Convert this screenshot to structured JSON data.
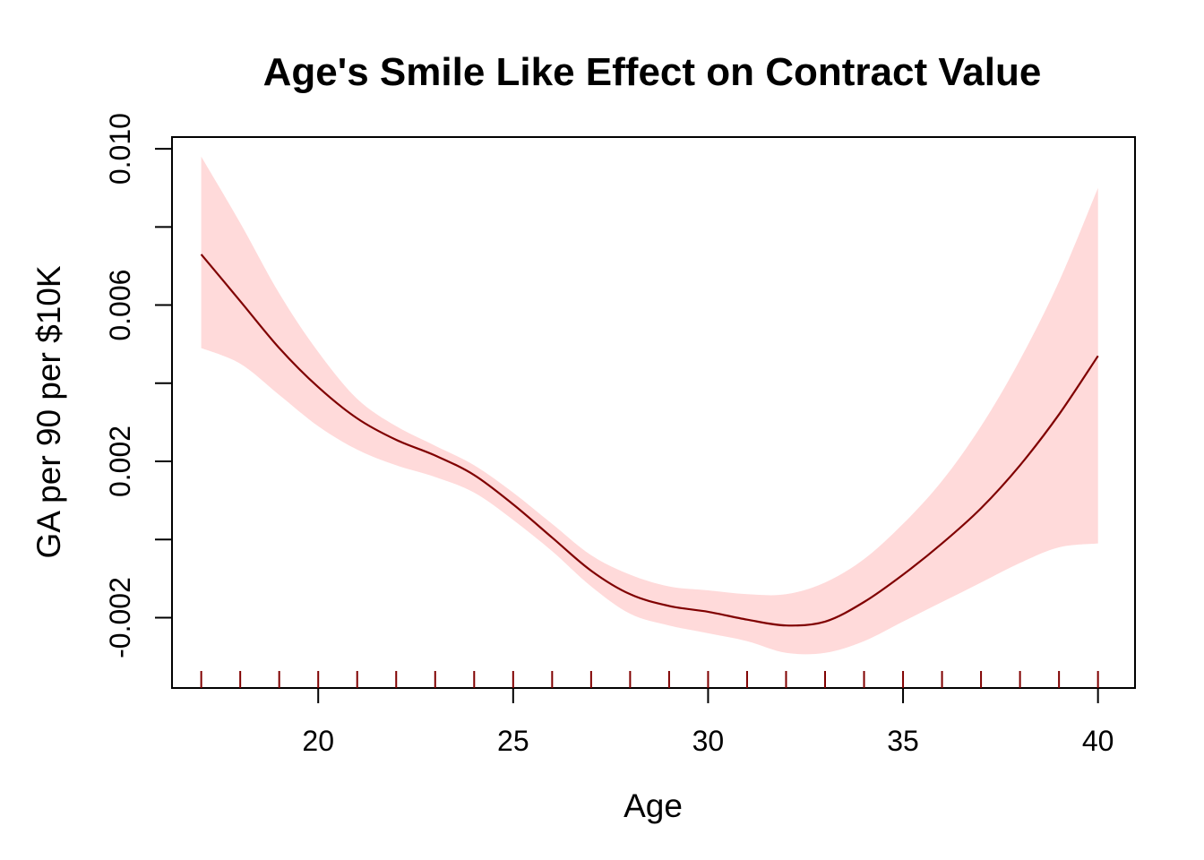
{
  "chart_data": {
    "type": "line",
    "title": "Age's Smile Like Effect on Contract Value",
    "xlabel": "Age",
    "ylabel": "GA per 90 per $10K",
    "xlim": [
      16.25,
      40.95
    ],
    "ylim": [
      -0.0038,
      0.0103
    ],
    "x_ticks": [
      "20",
      "25",
      "30",
      "35",
      "40"
    ],
    "y_ticks": [
      "-0.002",
      "0.002",
      "0.006",
      "0.010"
    ],
    "y_minor_ticks": [
      -0.002,
      0.0,
      0.002,
      0.004,
      0.006,
      0.008,
      0.01
    ],
    "grid": false,
    "legend": "none",
    "colors": {
      "line": "#800000",
      "band": "#ffdada",
      "rug": "#800000",
      "axis": "#000000"
    },
    "series": [
      {
        "kind": "fit",
        "x": [
          17,
          18,
          19,
          20,
          21,
          22,
          23,
          24,
          25,
          26,
          27,
          28,
          29,
          30,
          31,
          32,
          33,
          34,
          35,
          36,
          37,
          38,
          39,
          40
        ],
        "y": [
          0.0073,
          0.0061,
          0.0049,
          0.0039,
          0.0031,
          0.00255,
          0.00215,
          0.00165,
          0.0009,
          5e-05,
          -0.0008,
          -0.0014,
          -0.0017,
          -0.00185,
          -0.00205,
          -0.0022,
          -0.0021,
          -0.0016,
          -0.0009,
          -0.0001,
          0.0008,
          0.0019,
          0.0032,
          0.0047
        ]
      },
      {
        "kind": "upper_band",
        "x": [
          17,
          18,
          19,
          20,
          21,
          22,
          23,
          24,
          25,
          26,
          27,
          28,
          29,
          30,
          31,
          32,
          33,
          34,
          35,
          36,
          37,
          38,
          39,
          40
        ],
        "y": [
          0.0098,
          0.0081,
          0.0063,
          0.0048,
          0.0036,
          0.0029,
          0.0024,
          0.0019,
          0.0012,
          0.0004,
          -0.0004,
          -0.0009,
          -0.0012,
          -0.0013,
          -0.0014,
          -0.0014,
          -0.0011,
          -0.0005,
          0.0004,
          0.0015,
          0.0029,
          0.0046,
          0.0066,
          0.009
        ]
      },
      {
        "kind": "lower_band",
        "x": [
          17,
          18,
          19,
          20,
          21,
          22,
          23,
          24,
          25,
          26,
          27,
          28,
          29,
          30,
          31,
          32,
          33,
          34,
          35,
          36,
          37,
          38,
          39,
          40
        ],
        "y": [
          0.0049,
          0.0045,
          0.0037,
          0.0029,
          0.0023,
          0.0019,
          0.0016,
          0.0012,
          0.0005,
          -0.0003,
          -0.0012,
          -0.0019,
          -0.0022,
          -0.0024,
          -0.0026,
          -0.0029,
          -0.0029,
          -0.0026,
          -0.0021,
          -0.0016,
          -0.0011,
          -0.0006,
          -0.0002,
          -0.0001
        ]
      }
    ],
    "rug": [
      17,
      18,
      19,
      20,
      21,
      22,
      23,
      24,
      25,
      26,
      27,
      28,
      29,
      30,
      31,
      32,
      33,
      34,
      35,
      36,
      37,
      38,
      39,
      40
    ]
  }
}
